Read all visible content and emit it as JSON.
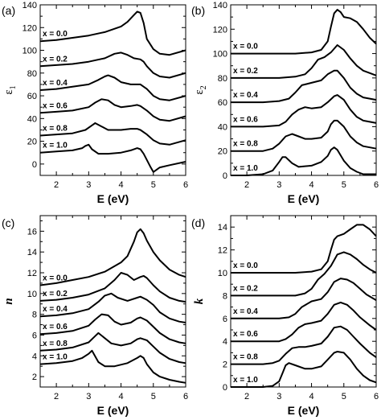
{
  "chart_data": [
    {
      "panel_label": "(a)",
      "type": "line",
      "ylabel": "ε",
      "ylabel_sub": "1",
      "ylabel_italic": false,
      "xlabel": "E (eV)",
      "xlim": [
        1.5,
        6.0
      ],
      "ylim": [
        -10,
        140
      ],
      "xticks": [
        "2",
        "3",
        "4",
        "5",
        "6"
      ],
      "yticks": [
        "0",
        "20",
        "40",
        "60",
        "80",
        "100",
        "120",
        "140"
      ],
      "series": [
        {
          "name": "x = 0.0",
          "x": [
            1.5,
            2.0,
            2.5,
            3.0,
            3.5,
            4.0,
            4.2,
            4.4,
            4.5,
            4.6,
            4.7,
            4.8,
            5.0,
            5.2,
            5.5,
            6.0
          ],
          "y": [
            108,
            109,
            111,
            113,
            116,
            121,
            125,
            131,
            134,
            133,
            124,
            110,
            101,
            97,
            96,
            100
          ]
        },
        {
          "name": "x = 0.2",
          "x": [
            1.5,
            2.0,
            2.5,
            3.0,
            3.5,
            3.8,
            4.0,
            4.2,
            4.4,
            4.6,
            4.7,
            4.8,
            5.0,
            5.2,
            5.5,
            6.0
          ],
          "y": [
            86,
            87,
            88,
            90,
            93,
            97,
            98,
            96,
            93,
            92,
            90,
            86,
            80,
            77,
            76,
            80
          ]
        },
        {
          "name": "x = 0.4",
          "x": [
            1.5,
            2.0,
            2.5,
            3.0,
            3.3,
            3.5,
            3.6,
            3.8,
            4.0,
            4.3,
            4.5,
            4.6,
            4.8,
            5.0,
            5.2,
            5.5,
            6.0
          ],
          "y": [
            65,
            66,
            68,
            70,
            74,
            77,
            78,
            76,
            72,
            70,
            70,
            70,
            66,
            60,
            57,
            56,
            60
          ]
        },
        {
          "name": "x = 0.6",
          "x": [
            1.5,
            2.0,
            2.5,
            3.0,
            3.2,
            3.4,
            3.6,
            3.8,
            4.0,
            4.3,
            4.5,
            4.6,
            4.8,
            5.0,
            5.2,
            5.5,
            6.0
          ],
          "y": [
            45,
            46,
            47,
            50,
            54,
            57,
            56,
            52,
            50,
            51,
            52,
            51,
            47,
            42,
            39,
            38,
            42
          ]
        },
        {
          "name": "x = 0.8",
          "x": [
            1.5,
            2.0,
            2.5,
            2.9,
            3.1,
            3.2,
            3.4,
            3.6,
            4.0,
            4.3,
            4.5,
            4.6,
            4.8,
            5.0,
            5.2,
            5.5,
            6.0
          ],
          "y": [
            25,
            26,
            27,
            30,
            34,
            36,
            33,
            30,
            30,
            31,
            31,
            30,
            26,
            21,
            18,
            17,
            21
          ]
        },
        {
          "name": "x = 1.0",
          "x": [
            1.5,
            2.0,
            2.5,
            2.8,
            2.9,
            3.0,
            3.1,
            3.3,
            3.6,
            4.0,
            4.3,
            4.5,
            4.6,
            4.7,
            4.9,
            5.0,
            5.2,
            5.5,
            6.0
          ],
          "y": [
            10,
            11,
            12,
            14,
            16,
            17,
            13,
            9,
            9,
            10,
            12,
            14,
            13,
            9,
            -2,
            -7,
            -3,
            -1,
            2
          ]
        }
      ]
    },
    {
      "panel_label": "(b)",
      "type": "line",
      "ylabel": "ε",
      "ylabel_sub": "2",
      "ylabel_italic": false,
      "xlabel": "E (eV)",
      "xlim": [
        1.5,
        6.0
      ],
      "ylim": [
        0,
        140
      ],
      "xticks": [
        "2",
        "3",
        "4",
        "5",
        "6"
      ],
      "yticks": [
        "0",
        "20",
        "40",
        "60",
        "80",
        "100",
        "120",
        "140"
      ],
      "series": [
        {
          "name": "x = 0.0",
          "x": [
            1.5,
            2.0,
            2.5,
            3.0,
            3.5,
            4.0,
            4.3,
            4.5,
            4.6,
            4.7,
            4.8,
            4.9,
            5.0,
            5.2,
            5.4,
            5.6,
            5.8,
            6.0
          ],
          "y": [
            100,
            100,
            100,
            100,
            100,
            101,
            103,
            110,
            122,
            133,
            136,
            134,
            130,
            129,
            126,
            120,
            113,
            108
          ]
        },
        {
          "name": "x = 0.2",
          "x": [
            1.5,
            2.0,
            2.5,
            3.0,
            3.5,
            3.8,
            4.0,
            4.2,
            4.4,
            4.6,
            4.8,
            5.0,
            5.2,
            5.4,
            5.6,
            5.8,
            6.0
          ],
          "y": [
            80,
            80,
            80,
            80,
            81,
            83,
            88,
            95,
            97,
            101,
            107,
            103,
            96,
            90,
            86,
            84,
            82
          ]
        },
        {
          "name": "x = 0.4",
          "x": [
            1.5,
            2.0,
            2.5,
            3.0,
            3.3,
            3.5,
            3.7,
            4.0,
            4.3,
            4.5,
            4.7,
            4.8,
            5.0,
            5.2,
            5.4,
            5.6,
            5.8,
            6.0
          ],
          "y": [
            60,
            60,
            60,
            61,
            63,
            68,
            74,
            76,
            78,
            83,
            86,
            86,
            80,
            72,
            67,
            64,
            63,
            62
          ]
        },
        {
          "name": "x = 0.6",
          "x": [
            1.5,
            2.0,
            2.5,
            3.0,
            3.2,
            3.4,
            3.6,
            3.8,
            4.0,
            4.3,
            4.5,
            4.7,
            4.8,
            5.0,
            5.2,
            5.4,
            5.6,
            5.8,
            6.0
          ],
          "y": [
            40,
            40,
            40,
            41,
            44,
            50,
            54,
            56,
            55,
            56,
            60,
            65,
            66,
            62,
            54,
            48,
            45,
            44,
            43
          ]
        },
        {
          "name": "x = 0.8",
          "x": [
            1.5,
            2.0,
            2.5,
            2.8,
            3.0,
            3.2,
            3.4,
            3.6,
            3.8,
            4.0,
            4.3,
            4.5,
            4.6,
            4.7,
            4.8,
            5.0,
            5.2,
            5.4,
            5.6,
            5.8,
            6.0
          ],
          "y": [
            20,
            20,
            20,
            22,
            26,
            32,
            34,
            32,
            30,
            30,
            31,
            36,
            42,
            45,
            45,
            40,
            32,
            27,
            24,
            23,
            22
          ]
        },
        {
          "name": "x = 1.0",
          "x": [
            1.5,
            2.0,
            2.5,
            2.8,
            3.0,
            3.1,
            3.2,
            3.4,
            3.6,
            4.0,
            4.3,
            4.5,
            4.6,
            4.7,
            4.8,
            5.0,
            5.2,
            5.4,
            5.6,
            5.8,
            6.0
          ],
          "y": [
            0,
            0,
            1,
            4,
            11,
            15,
            15,
            10,
            7,
            8,
            11,
            16,
            21,
            23,
            21,
            12,
            6,
            3,
            1,
            1,
            1
          ]
        }
      ]
    },
    {
      "panel_label": "(c)",
      "type": "line",
      "ylabel": "n",
      "ylabel_sub": "",
      "ylabel_italic": true,
      "xlabel": "E (eV)",
      "xlim": [
        1.5,
        6.0
      ],
      "ylim": [
        1,
        17.5
      ],
      "xticks": [
        "2",
        "3",
        "4",
        "5",
        "6"
      ],
      "yticks": [
        "2",
        "4",
        "6",
        "8",
        "10",
        "12",
        "14",
        "16"
      ],
      "series": [
        {
          "name": "x = 0.0",
          "x": [
            1.5,
            2.0,
            2.5,
            3.0,
            3.5,
            4.0,
            4.2,
            4.4,
            4.5,
            4.6,
            4.7,
            4.8,
            5.0,
            5.2,
            5.5,
            5.8,
            6.0
          ],
          "y": [
            10.8,
            11.0,
            11.3,
            11.6,
            12.1,
            13.0,
            13.6,
            15.0,
            15.9,
            16.2,
            15.8,
            15.1,
            14.0,
            13.2,
            12.3,
            11.8,
            11.6
          ]
        },
        {
          "name": "x = 0.2",
          "x": [
            1.5,
            2.0,
            2.5,
            3.0,
            3.5,
            3.8,
            4.0,
            4.2,
            4.4,
            4.6,
            4.7,
            4.8,
            5.0,
            5.2,
            5.5,
            5.8,
            6.0
          ],
          "y": [
            9.3,
            9.4,
            9.6,
            9.9,
            10.5,
            11.3,
            12.0,
            11.8,
            11.3,
            11.6,
            11.7,
            11.5,
            10.8,
            10.2,
            9.6,
            9.3,
            9.2
          ]
        },
        {
          "name": "x = 0.4",
          "x": [
            1.5,
            2.0,
            2.5,
            3.0,
            3.3,
            3.5,
            3.7,
            3.9,
            4.2,
            4.5,
            4.6,
            4.8,
            5.0,
            5.2,
            5.5,
            5.8,
            6.0
          ],
          "y": [
            7.8,
            7.9,
            8.1,
            8.5,
            9.2,
            9.8,
            10.0,
            9.6,
            9.3,
            9.6,
            9.7,
            9.4,
            8.9,
            8.2,
            7.6,
            7.3,
            7.2
          ]
        },
        {
          "name": "x = 0.6",
          "x": [
            1.5,
            2.0,
            2.5,
            3.0,
            3.2,
            3.4,
            3.6,
            3.8,
            4.0,
            4.3,
            4.5,
            4.6,
            4.8,
            5.0,
            5.2,
            5.5,
            5.8,
            6.0
          ],
          "y": [
            6.1,
            6.2,
            6.4,
            6.9,
            7.5,
            8.0,
            7.9,
            7.3,
            7.0,
            7.2,
            7.6,
            7.7,
            7.4,
            6.8,
            6.2,
            5.6,
            5.3,
            5.2
          ]
        },
        {
          "name": "x = 0.8",
          "x": [
            1.5,
            2.0,
            2.5,
            3.0,
            3.2,
            3.3,
            3.5,
            3.7,
            4.0,
            4.3,
            4.5,
            4.6,
            4.8,
            5.0,
            5.2,
            5.5,
            5.8,
            6.0
          ],
          "y": [
            4.5,
            4.6,
            4.8,
            5.3,
            5.9,
            6.2,
            5.7,
            5.2,
            5.0,
            5.2,
            5.6,
            5.7,
            5.5,
            4.9,
            4.3,
            3.7,
            3.4,
            3.3
          ]
        },
        {
          "name": "x = 1.0",
          "x": [
            1.5,
            2.0,
            2.5,
            2.8,
            3.0,
            3.1,
            3.3,
            3.5,
            3.8,
            4.2,
            4.5,
            4.6,
            4.7,
            4.8,
            5.0,
            5.2,
            5.5,
            5.8,
            6.0
          ],
          "y": [
            3.2,
            3.3,
            3.5,
            3.8,
            4.2,
            4.5,
            3.4,
            3.0,
            3.0,
            3.3,
            3.8,
            4.0,
            3.8,
            3.2,
            2.4,
            2.0,
            1.7,
            1.5,
            1.4
          ]
        }
      ]
    },
    {
      "panel_label": "(d)",
      "type": "line",
      "ylabel": "k",
      "ylabel_sub": "",
      "ylabel_italic": true,
      "xlabel": "E (eV)",
      "xlim": [
        1.5,
        6.0
      ],
      "ylim": [
        0,
        15
      ],
      "xticks": [
        "2",
        "3",
        "4",
        "5",
        "6"
      ],
      "yticks": [
        "0",
        "2",
        "4",
        "6",
        "8",
        "10",
        "12",
        "14"
      ],
      "series": [
        {
          "name": "x = 0.0",
          "x": [
            1.5,
            2.0,
            2.5,
            3.0,
            3.5,
            4.0,
            4.3,
            4.5,
            4.6,
            4.7,
            4.8,
            5.0,
            5.2,
            5.4,
            5.6,
            5.8,
            6.0
          ],
          "y": [
            10.0,
            10.0,
            10.0,
            10.0,
            10.0,
            10.1,
            10.3,
            11.0,
            12.0,
            12.9,
            13.2,
            13.4,
            13.8,
            14.2,
            14.2,
            13.8,
            13.2
          ]
        },
        {
          "name": "x = 0.2",
          "x": [
            1.5,
            2.0,
            2.5,
            3.0,
            3.5,
            3.8,
            4.0,
            4.2,
            4.4,
            4.6,
            4.8,
            5.0,
            5.2,
            5.4,
            5.6,
            5.8,
            6.0
          ],
          "y": [
            8.0,
            8.0,
            8.0,
            8.0,
            8.0,
            8.2,
            8.6,
            9.4,
            9.9,
            10.6,
            11.6,
            11.8,
            11.6,
            11.2,
            10.7,
            10.3,
            10.0
          ]
        },
        {
          "name": "x = 0.4",
          "x": [
            1.5,
            2.0,
            2.5,
            3.0,
            3.3,
            3.5,
            3.7,
            4.0,
            4.3,
            4.5,
            4.7,
            4.9,
            5.1,
            5.3,
            5.5,
            5.7,
            6.0
          ],
          "y": [
            6.0,
            6.0,
            6.0,
            6.0,
            6.1,
            6.4,
            7.0,
            7.5,
            7.7,
            8.3,
            9.2,
            9.5,
            9.4,
            9.1,
            8.6,
            8.1,
            7.6
          ]
        },
        {
          "name": "x = 0.6",
          "x": [
            1.5,
            2.0,
            2.5,
            3.0,
            3.2,
            3.4,
            3.6,
            3.8,
            4.0,
            4.3,
            4.5,
            4.7,
            4.9,
            5.1,
            5.3,
            5.5,
            5.8,
            6.0
          ],
          "y": [
            4.0,
            4.0,
            4.0,
            4.0,
            4.2,
            4.6,
            5.2,
            5.5,
            5.6,
            5.8,
            6.4,
            7.2,
            7.4,
            7.2,
            6.7,
            6.1,
            5.4,
            5.0
          ]
        },
        {
          "name": "x = 0.8",
          "x": [
            1.5,
            2.0,
            2.5,
            2.8,
            3.0,
            3.2,
            3.4,
            3.6,
            3.8,
            4.0,
            4.3,
            4.5,
            4.7,
            4.9,
            5.1,
            5.3,
            5.5,
            5.8,
            6.0
          ],
          "y": [
            2.0,
            2.0,
            2.0,
            2.1,
            2.3,
            2.9,
            3.4,
            3.5,
            3.5,
            3.6,
            3.8,
            4.4,
            5.2,
            5.3,
            5.0,
            4.4,
            3.8,
            3.0,
            2.6
          ]
        },
        {
          "name": "x = 1.0",
          "x": [
            1.5,
            2.0,
            2.5,
            2.8,
            3.0,
            3.1,
            3.2,
            3.3,
            3.5,
            3.8,
            4.0,
            4.3,
            4.5,
            4.7,
            4.8,
            5.0,
            5.2,
            5.4,
            5.6,
            5.8,
            6.0
          ],
          "y": [
            0.0,
            0.0,
            0.0,
            0.1,
            0.5,
            1.2,
            1.9,
            2.1,
            1.9,
            1.6,
            1.6,
            1.8,
            2.4,
            3.0,
            3.1,
            3.0,
            2.4,
            1.6,
            1.0,
            0.6,
            0.4
          ]
        }
      ]
    }
  ]
}
